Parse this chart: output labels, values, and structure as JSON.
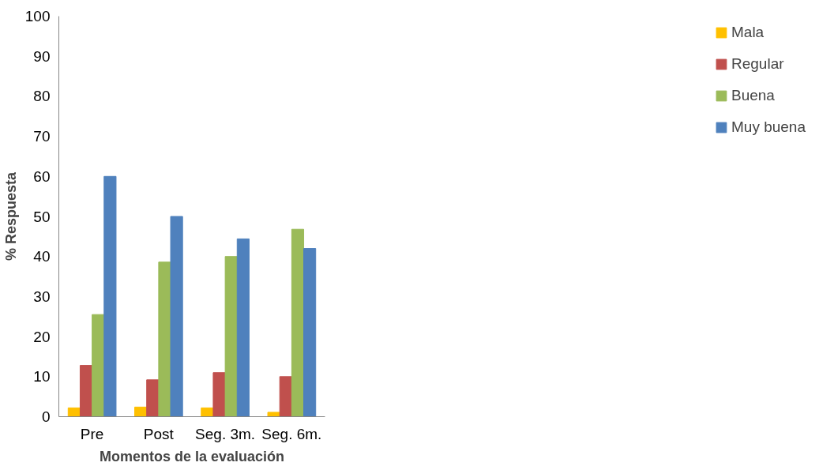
{
  "chart_data": {
    "type": "bar",
    "xlabel": "Momentos de la evaluación",
    "ylabel": "% Respuesta",
    "categories": [
      "Pre",
      "Post",
      "Seg. 3m.",
      "Seg. 6m."
    ],
    "series": [
      {
        "name": "Mala",
        "color": "#ffc000",
        "values": [
          2.2,
          2.4,
          2.2,
          1.1
        ]
      },
      {
        "name": "Regular",
        "color": "#c0504d",
        "values": [
          12.8,
          9.2,
          11,
          10
        ]
      },
      {
        "name": "Buena",
        "color": "#9bbb59",
        "values": [
          25.5,
          38.6,
          40,
          46.8
        ]
      },
      {
        "name": "Muy buena",
        "color": "#4f81bd",
        "values": [
          60,
          50,
          44.4,
          42
        ]
      }
    ],
    "ylim": [
      0,
      100
    ],
    "yticks": [
      0,
      10,
      20,
      30,
      40,
      50,
      60,
      70,
      80,
      90,
      100
    ],
    "grid": false,
    "legend": "right"
  }
}
